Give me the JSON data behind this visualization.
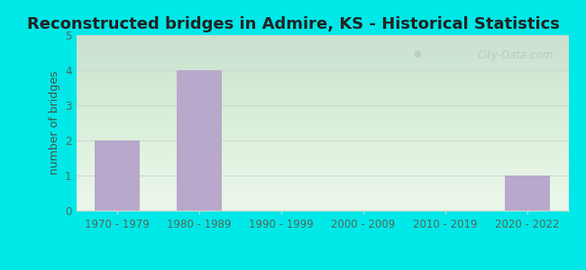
{
  "title": "Reconstructed bridges in Admire, KS - Historical Statistics",
  "categories": [
    "1970 - 1979",
    "1980 - 1989",
    "1990 - 1999",
    "2000 - 2009",
    "2010 - 2019",
    "2020 - 2022"
  ],
  "values": [
    2,
    4,
    0,
    0,
    0,
    1
  ],
  "bar_color": "#b8a8cc",
  "ylabel": "number of bridges",
  "ylim": [
    0,
    5
  ],
  "yticks": [
    0,
    1,
    2,
    3,
    4,
    5
  ],
  "title_fontsize": 13,
  "label_fontsize": 9,
  "tick_fontsize": 8.5,
  "bg_outer": "#00e8e8",
  "bg_plot": "#e8f5e8",
  "grid_color": "#d0d8d0",
  "watermark_text": "City-Data.com",
  "watermark_color": "#b8c8b8",
  "axis_label_color": "#445544",
  "tick_label_color": "#556655",
  "title_color": "#222222"
}
